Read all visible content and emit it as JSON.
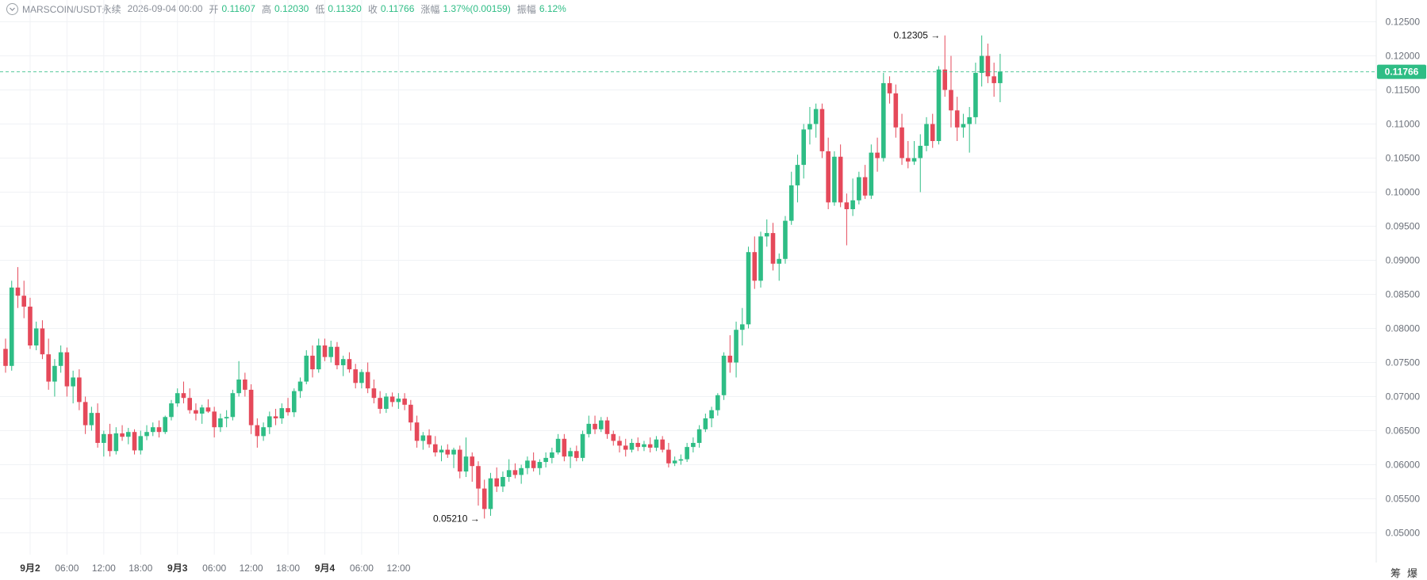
{
  "header": {
    "symbol": "MARSCOIN/USDT永续",
    "time": "2026-09-04 00:00",
    "open_label": "开",
    "open": "0.11607",
    "high_label": "高",
    "high": "0.12030",
    "low_label": "低",
    "low": "0.11320",
    "close_label": "收",
    "close": "0.11766",
    "change_label": "涨幅",
    "change": "1.37%(0.00159)",
    "amplitude_label": "振幅",
    "amplitude": "6.12%"
  },
  "corner": {
    "left": "筹",
    "right": "爆"
  },
  "colors": {
    "up": "#2ebd85",
    "down": "#e5495a",
    "grid": "#f0f2f5",
    "price_line": "#2ebd85"
  },
  "chart_data": {
    "type": "candlestick",
    "interval_hours": 1,
    "start": "2026-09-01 20:00",
    "y_ticks": [
      "0.05000",
      "0.05500",
      "0.06000",
      "0.06500",
      "0.07000",
      "0.07500",
      "0.08000",
      "0.08500",
      "0.09000",
      "0.09500",
      "0.10000",
      "0.10500",
      "0.11000",
      "0.11500",
      "0.12000",
      "0.12500"
    ],
    "ylim": [
      0.0468,
      0.1282
    ],
    "x_ticks": [
      "9月2",
      "06:00",
      "12:00",
      "18:00",
      "9月3",
      "06:00",
      "12:00",
      "18:00",
      "9月4",
      "06:00",
      "12:00"
    ],
    "current_price": "0.11766",
    "max_marker": "0.12305",
    "min_marker": "0.05210",
    "candles": [
      [
        0.077,
        0.0785,
        0.0735,
        0.0745
      ],
      [
        0.0745,
        0.087,
        0.0738,
        0.086
      ],
      [
        0.086,
        0.089,
        0.083,
        0.0848
      ],
      [
        0.0848,
        0.087,
        0.0815,
        0.0832
      ],
      [
        0.0832,
        0.0845,
        0.077,
        0.0775
      ],
      [
        0.0775,
        0.081,
        0.0768,
        0.08
      ],
      [
        0.08,
        0.0812,
        0.0755,
        0.0762
      ],
      [
        0.0762,
        0.0785,
        0.071,
        0.0722
      ],
      [
        0.0722,
        0.0755,
        0.07,
        0.0745
      ],
      [
        0.0745,
        0.0775,
        0.0735,
        0.0765
      ],
      [
        0.0765,
        0.0772,
        0.07,
        0.0715
      ],
      [
        0.0715,
        0.0738,
        0.069,
        0.0728
      ],
      [
        0.0728,
        0.074,
        0.068,
        0.0692
      ],
      [
        0.0692,
        0.07,
        0.0645,
        0.0658
      ],
      [
        0.0658,
        0.0685,
        0.065,
        0.0676
      ],
      [
        0.0676,
        0.069,
        0.0625,
        0.0632
      ],
      [
        0.0632,
        0.065,
        0.0612,
        0.0645
      ],
      [
        0.0645,
        0.066,
        0.0612,
        0.062
      ],
      [
        0.062,
        0.0655,
        0.0615,
        0.0646
      ],
      [
        0.0646,
        0.0658,
        0.0635,
        0.0641
      ],
      [
        0.0641,
        0.0654,
        0.063,
        0.0648
      ],
      [
        0.0648,
        0.0652,
        0.0615,
        0.0621
      ],
      [
        0.0621,
        0.065,
        0.0615,
        0.0642
      ],
      [
        0.0642,
        0.0658,
        0.0636,
        0.0648
      ],
      [
        0.0648,
        0.0662,
        0.0642,
        0.0655
      ],
      [
        0.0655,
        0.0665,
        0.064,
        0.0648
      ],
      [
        0.0648,
        0.0672,
        0.0645,
        0.067
      ],
      [
        0.067,
        0.0695,
        0.0665,
        0.069
      ],
      [
        0.069,
        0.0712,
        0.0685,
        0.0705
      ],
      [
        0.0705,
        0.0722,
        0.069,
        0.0698
      ],
      [
        0.0698,
        0.0712,
        0.0675,
        0.068
      ],
      [
        0.068,
        0.069,
        0.0665,
        0.0675
      ],
      [
        0.0675,
        0.0688,
        0.066,
        0.0684
      ],
      [
        0.0684,
        0.0696,
        0.0676,
        0.0678
      ],
      [
        0.0678,
        0.0685,
        0.064,
        0.0655
      ],
      [
        0.0655,
        0.0675,
        0.0648,
        0.0668
      ],
      [
        0.0668,
        0.068,
        0.0655,
        0.067
      ],
      [
        0.067,
        0.071,
        0.0665,
        0.0705
      ],
      [
        0.0705,
        0.0752,
        0.07,
        0.0725
      ],
      [
        0.0725,
        0.0735,
        0.07,
        0.071
      ],
      [
        0.071,
        0.0718,
        0.0645,
        0.0658
      ],
      [
        0.0658,
        0.0668,
        0.0625,
        0.0642
      ],
      [
        0.0642,
        0.0662,
        0.0635,
        0.0655
      ],
      [
        0.0655,
        0.0678,
        0.0645,
        0.0671
      ],
      [
        0.0671,
        0.0682,
        0.0658,
        0.0668
      ],
      [
        0.0668,
        0.069,
        0.066,
        0.0683
      ],
      [
        0.0683,
        0.0698,
        0.0672,
        0.0677
      ],
      [
        0.0677,
        0.0712,
        0.067,
        0.0708
      ],
      [
        0.0708,
        0.0728,
        0.0698,
        0.0722
      ],
      [
        0.0722,
        0.0768,
        0.0718,
        0.076
      ],
      [
        0.076,
        0.0775,
        0.0728,
        0.074
      ],
      [
        0.074,
        0.0785,
        0.0735,
        0.0775
      ],
      [
        0.0775,
        0.0785,
        0.0752,
        0.0758
      ],
      [
        0.0758,
        0.0782,
        0.075,
        0.0773
      ],
      [
        0.0773,
        0.078,
        0.074,
        0.0746
      ],
      [
        0.0746,
        0.076,
        0.073,
        0.0755
      ],
      [
        0.0755,
        0.0765,
        0.0735,
        0.074
      ],
      [
        0.074,
        0.0748,
        0.0712,
        0.072
      ],
      [
        0.072,
        0.074,
        0.0712,
        0.0736
      ],
      [
        0.0736,
        0.075,
        0.0705,
        0.0712
      ],
      [
        0.0712,
        0.0725,
        0.069,
        0.0698
      ],
      [
        0.0698,
        0.0708,
        0.0675,
        0.0682
      ],
      [
        0.0682,
        0.0705,
        0.0676,
        0.07
      ],
      [
        0.07,
        0.0706,
        0.0685,
        0.0692
      ],
      [
        0.0692,
        0.0705,
        0.0682,
        0.0697
      ],
      [
        0.0697,
        0.0705,
        0.068,
        0.0688
      ],
      [
        0.0688,
        0.0695,
        0.065,
        0.0662
      ],
      [
        0.0662,
        0.0672,
        0.0625,
        0.0635
      ],
      [
        0.0635,
        0.0648,
        0.0622,
        0.0643
      ],
      [
        0.0643,
        0.0652,
        0.0625,
        0.063
      ],
      [
        0.063,
        0.0642,
        0.0612,
        0.0618
      ],
      [
        0.0618,
        0.0628,
        0.0605,
        0.0622
      ],
      [
        0.0622,
        0.063,
        0.061,
        0.0615
      ],
      [
        0.0615,
        0.0625,
        0.0595,
        0.0622
      ],
      [
        0.0622,
        0.0628,
        0.058,
        0.059
      ],
      [
        0.059,
        0.064,
        0.0582,
        0.0612
      ],
      [
        0.0612,
        0.0618,
        0.0575,
        0.0598
      ],
      [
        0.0598,
        0.0605,
        0.054,
        0.0565
      ],
      [
        0.0565,
        0.0578,
        0.0521,
        0.0535
      ],
      [
        0.0535,
        0.0588,
        0.0525,
        0.058
      ],
      [
        0.058,
        0.0596,
        0.056,
        0.0568
      ],
      [
        0.0568,
        0.059,
        0.056,
        0.0582
      ],
      [
        0.0582,
        0.0608,
        0.0575,
        0.0592
      ],
      [
        0.0592,
        0.0602,
        0.058,
        0.0585
      ],
      [
        0.0585,
        0.06,
        0.0572,
        0.0595
      ],
      [
        0.0595,
        0.0612,
        0.0586,
        0.0606
      ],
      [
        0.0606,
        0.0618,
        0.059,
        0.0595
      ],
      [
        0.0595,
        0.0608,
        0.0585,
        0.0604
      ],
      [
        0.0604,
        0.0618,
        0.0596,
        0.061
      ],
      [
        0.061,
        0.0625,
        0.0602,
        0.0618
      ],
      [
        0.0618,
        0.0645,
        0.0615,
        0.0638
      ],
      [
        0.0638,
        0.0645,
        0.0605,
        0.0612
      ],
      [
        0.0612,
        0.0625,
        0.0595,
        0.062
      ],
      [
        0.062,
        0.0628,
        0.0605,
        0.061
      ],
      [
        0.061,
        0.065,
        0.0605,
        0.0645
      ],
      [
        0.0645,
        0.0672,
        0.064,
        0.066
      ],
      [
        0.066,
        0.0672,
        0.0645,
        0.0652
      ],
      [
        0.0652,
        0.067,
        0.0648,
        0.0665
      ],
      [
        0.0665,
        0.067,
        0.0638,
        0.0645
      ],
      [
        0.0645,
        0.065,
        0.0628,
        0.0635
      ],
      [
        0.0635,
        0.0642,
        0.0618,
        0.0628
      ],
      [
        0.0628,
        0.0638,
        0.0612,
        0.0622
      ],
      [
        0.0622,
        0.0638,
        0.0618,
        0.0632
      ],
      [
        0.0632,
        0.064,
        0.062,
        0.0626
      ],
      [
        0.0626,
        0.0635,
        0.062,
        0.063
      ],
      [
        0.063,
        0.064,
        0.0618,
        0.0625
      ],
      [
        0.0625,
        0.0642,
        0.062,
        0.0637
      ],
      [
        0.0637,
        0.0642,
        0.0618,
        0.0622
      ],
      [
        0.0622,
        0.0632,
        0.0596,
        0.0602
      ],
      [
        0.0602,
        0.0612,
        0.0598,
        0.0606
      ],
      [
        0.0606,
        0.0615,
        0.06,
        0.0608
      ],
      [
        0.0608,
        0.0632,
        0.0604,
        0.0626
      ],
      [
        0.0626,
        0.064,
        0.0618,
        0.0632
      ],
      [
        0.0632,
        0.0658,
        0.0625,
        0.0652
      ],
      [
        0.0652,
        0.0675,
        0.0648,
        0.0668
      ],
      [
        0.0668,
        0.0685,
        0.0655,
        0.068
      ],
      [
        0.068,
        0.0705,
        0.0672,
        0.0702
      ],
      [
        0.0702,
        0.0765,
        0.0695,
        0.076
      ],
      [
        0.076,
        0.079,
        0.0735,
        0.075
      ],
      [
        0.075,
        0.081,
        0.0728,
        0.0798
      ],
      [
        0.0798,
        0.083,
        0.0775,
        0.0806
      ],
      [
        0.0806,
        0.092,
        0.08,
        0.0912
      ],
      [
        0.0912,
        0.0935,
        0.0858,
        0.087
      ],
      [
        0.087,
        0.0942,
        0.086,
        0.0935
      ],
      [
        0.0935,
        0.096,
        0.092,
        0.094
      ],
      [
        0.094,
        0.0955,
        0.0885,
        0.0895
      ],
      [
        0.0895,
        0.091,
        0.087,
        0.0902
      ],
      [
        0.0902,
        0.0965,
        0.0895,
        0.0958
      ],
      [
        0.0958,
        0.103,
        0.0952,
        0.101
      ],
      [
        0.101,
        0.1055,
        0.0985,
        0.104
      ],
      [
        0.104,
        0.11,
        0.102,
        0.1092
      ],
      [
        0.1092,
        0.1125,
        0.107,
        0.11
      ],
      [
        0.11,
        0.113,
        0.108,
        0.1122
      ],
      [
        0.1122,
        0.113,
        0.105,
        0.106
      ],
      [
        0.106,
        0.108,
        0.0975,
        0.0985
      ],
      [
        0.0985,
        0.106,
        0.098,
        0.1052
      ],
      [
        0.1052,
        0.107,
        0.0978,
        0.0985
      ],
      [
        0.0985,
        0.0998,
        0.0922,
        0.0975
      ],
      [
        0.0975,
        0.102,
        0.0965,
        0.0988
      ],
      [
        0.0988,
        0.103,
        0.0982,
        0.1022
      ],
      [
        0.1022,
        0.104,
        0.099,
        0.0995
      ],
      [
        0.0995,
        0.107,
        0.099,
        0.1058
      ],
      [
        0.1058,
        0.108,
        0.103,
        0.105
      ],
      [
        0.105,
        0.1175,
        0.1045,
        0.116
      ],
      [
        0.116,
        0.117,
        0.113,
        0.1145
      ],
      [
        0.1145,
        0.1158,
        0.108,
        0.1095
      ],
      [
        0.1095,
        0.1115,
        0.104,
        0.105
      ],
      [
        0.105,
        0.1075,
        0.1035,
        0.1045
      ],
      [
        0.1045,
        0.1075,
        0.104,
        0.105
      ],
      [
        0.105,
        0.1085,
        0.1,
        0.1068
      ],
      [
        0.1068,
        0.111,
        0.106,
        0.11
      ],
      [
        0.11,
        0.1115,
        0.1065,
        0.1075
      ],
      [
        0.1075,
        0.1185,
        0.107,
        0.118
      ],
      [
        0.118,
        0.123,
        0.114,
        0.115
      ],
      [
        0.115,
        0.12,
        0.1095,
        0.112
      ],
      [
        0.112,
        0.114,
        0.1075,
        0.1095
      ],
      [
        0.1095,
        0.1115,
        0.108,
        0.11
      ],
      [
        0.11,
        0.1125,
        0.1058,
        0.111
      ],
      [
        0.111,
        0.119,
        0.11,
        0.1175
      ],
      [
        0.1175,
        0.123,
        0.1155,
        0.12
      ],
      [
        0.12,
        0.1218,
        0.116,
        0.117
      ],
      [
        0.117,
        0.119,
        0.114,
        0.116
      ],
      [
        0.116,
        0.1203,
        0.1132,
        0.1177
      ]
    ]
  }
}
